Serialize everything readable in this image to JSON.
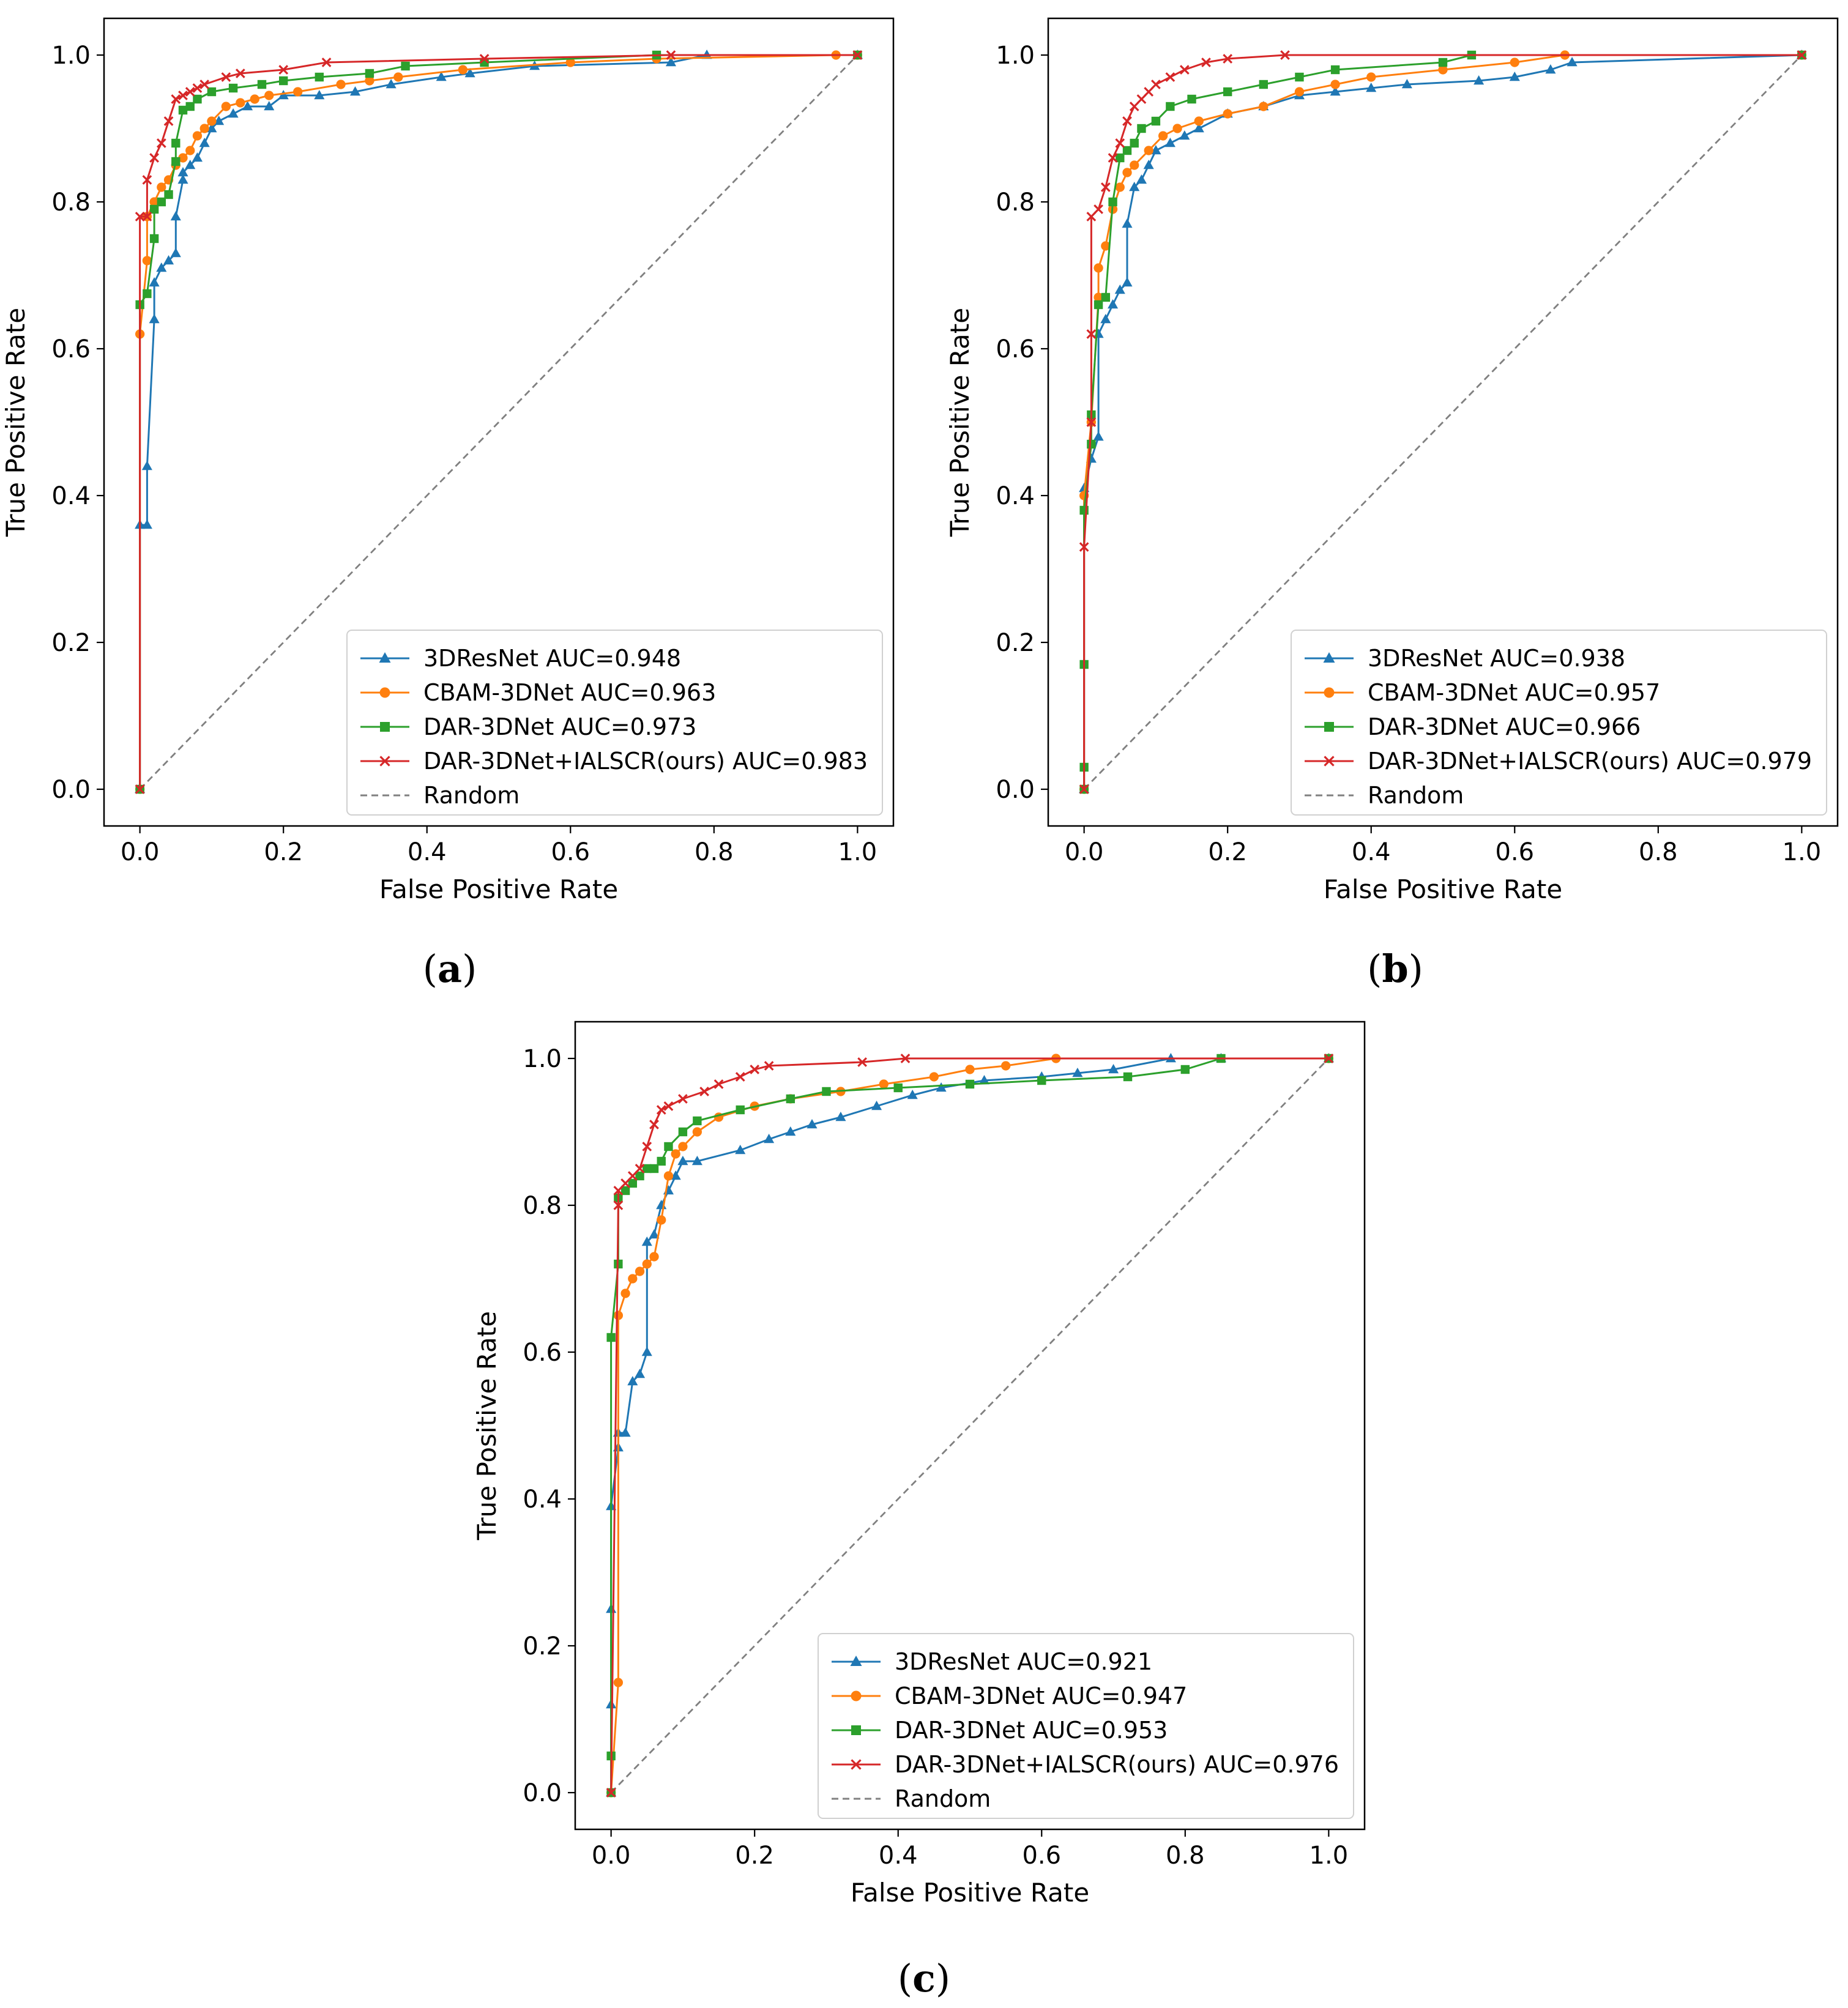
{
  "chart_data": [
    {
      "type": "line",
      "panel_label": "a",
      "xlabel": "False Positive Rate",
      "ylabel": "True Positive Rate",
      "xlim": [
        -0.05,
        1.05
      ],
      "ylim": [
        -0.05,
        1.05
      ],
      "xticks": [
        "0.0",
        "0.2",
        "0.4",
        "0.6",
        "0.8",
        "1.0"
      ],
      "yticks": [
        "0.0",
        "0.2",
        "0.4",
        "0.6",
        "0.8",
        "1.0"
      ],
      "grid": false,
      "legend_position": "lower-right",
      "series": [
        {
          "name": "3DResNet AUC=0.948",
          "color": "#1f77b4",
          "marker": "triangle",
          "x": [
            0.0,
            0.0,
            0.01,
            0.01,
            0.02,
            0.02,
            0.03,
            0.04,
            0.05,
            0.05,
            0.06,
            0.06,
            0.07,
            0.08,
            0.09,
            0.1,
            0.11,
            0.13,
            0.15,
            0.18,
            0.2,
            0.25,
            0.3,
            0.35,
            0.42,
            0.46,
            0.55,
            0.74,
            0.79,
            1.0
          ],
          "y": [
            0.0,
            0.36,
            0.36,
            0.44,
            0.64,
            0.69,
            0.71,
            0.72,
            0.73,
            0.78,
            0.83,
            0.84,
            0.85,
            0.86,
            0.88,
            0.9,
            0.91,
            0.92,
            0.93,
            0.93,
            0.945,
            0.945,
            0.95,
            0.96,
            0.97,
            0.975,
            0.985,
            0.99,
            1.0,
            1.0
          ]
        },
        {
          "name": "CBAM-3DNet AUC=0.963",
          "color": "#ff7f0e",
          "marker": "circle",
          "x": [
            0.0,
            0.0,
            0.01,
            0.01,
            0.02,
            0.03,
            0.04,
            0.05,
            0.06,
            0.07,
            0.08,
            0.09,
            0.1,
            0.12,
            0.14,
            0.16,
            0.18,
            0.22,
            0.28,
            0.32,
            0.36,
            0.45,
            0.6,
            0.72,
            0.97,
            1.0
          ],
          "y": [
            0.0,
            0.62,
            0.72,
            0.78,
            0.8,
            0.82,
            0.83,
            0.85,
            0.86,
            0.87,
            0.89,
            0.9,
            0.91,
            0.93,
            0.935,
            0.94,
            0.945,
            0.95,
            0.96,
            0.965,
            0.97,
            0.98,
            0.99,
            0.995,
            1.0,
            1.0
          ]
        },
        {
          "name": "DAR-3DNet AUC=0.973",
          "color": "#2ca02c",
          "marker": "square",
          "x": [
            0.0,
            0.0,
            0.01,
            0.02,
            0.02,
            0.03,
            0.04,
            0.05,
            0.05,
            0.06,
            0.07,
            0.08,
            0.1,
            0.13,
            0.17,
            0.2,
            0.25,
            0.32,
            0.37,
            0.48,
            0.72,
            1.0
          ],
          "y": [
            0.0,
            0.66,
            0.675,
            0.75,
            0.79,
            0.8,
            0.81,
            0.855,
            0.88,
            0.925,
            0.93,
            0.94,
            0.95,
            0.955,
            0.96,
            0.965,
            0.97,
            0.975,
            0.985,
            0.99,
            1.0,
            1.0
          ]
        },
        {
          "name": "DAR-3DNet+IALSCR(ours) AUC=0.983",
          "color": "#d62728",
          "marker": "x",
          "x": [
            0.0,
            0.0,
            0.01,
            0.01,
            0.02,
            0.03,
            0.04,
            0.05,
            0.06,
            0.07,
            0.08,
            0.09,
            0.12,
            0.14,
            0.2,
            0.26,
            0.48,
            0.74,
            1.0
          ],
          "y": [
            0.0,
            0.78,
            0.78,
            0.83,
            0.86,
            0.88,
            0.91,
            0.94,
            0.945,
            0.95,
            0.955,
            0.96,
            0.97,
            0.975,
            0.98,
            0.99,
            0.995,
            1.0,
            1.0
          ]
        },
        {
          "name": "Random",
          "color": "#808080",
          "marker": "none",
          "dashed": true,
          "x": [
            0.0,
            1.0
          ],
          "y": [
            0.0,
            1.0
          ]
        }
      ]
    },
    {
      "type": "line",
      "panel_label": "b",
      "xlabel": "False Positive Rate",
      "ylabel": "True Positive Rate",
      "xlim": [
        -0.05,
        1.05
      ],
      "ylim": [
        -0.05,
        1.05
      ],
      "xticks": [
        "0.0",
        "0.2",
        "0.4",
        "0.6",
        "0.8",
        "1.0"
      ],
      "yticks": [
        "0.0",
        "0.2",
        "0.4",
        "0.6",
        "0.8",
        "1.0"
      ],
      "grid": false,
      "legend_position": "lower-right",
      "series": [
        {
          "name": "3DResNet AUC=0.938",
          "color": "#1f77b4",
          "marker": "triangle",
          "x": [
            0.0,
            0.0,
            0.01,
            0.02,
            0.02,
            0.03,
            0.04,
            0.05,
            0.06,
            0.06,
            0.07,
            0.08,
            0.09,
            0.1,
            0.12,
            0.14,
            0.16,
            0.2,
            0.25,
            0.3,
            0.35,
            0.4,
            0.45,
            0.55,
            0.6,
            0.65,
            0.68,
            1.0
          ],
          "y": [
            0.0,
            0.41,
            0.45,
            0.48,
            0.62,
            0.64,
            0.66,
            0.68,
            0.69,
            0.77,
            0.82,
            0.83,
            0.85,
            0.87,
            0.88,
            0.89,
            0.9,
            0.92,
            0.93,
            0.945,
            0.95,
            0.955,
            0.96,
            0.965,
            0.97,
            0.98,
            0.99,
            1.0
          ]
        },
        {
          "name": "CBAM-3DNet AUC=0.957",
          "color": "#ff7f0e",
          "marker": "circle",
          "x": [
            0.0,
            0.0,
            0.01,
            0.02,
            0.02,
            0.03,
            0.04,
            0.05,
            0.06,
            0.07,
            0.09,
            0.11,
            0.13,
            0.16,
            0.2,
            0.25,
            0.3,
            0.35,
            0.4,
            0.5,
            0.6,
            0.67,
            1.0
          ],
          "y": [
            0.0,
            0.4,
            0.5,
            0.67,
            0.71,
            0.74,
            0.79,
            0.82,
            0.84,
            0.85,
            0.87,
            0.89,
            0.9,
            0.91,
            0.92,
            0.93,
            0.95,
            0.96,
            0.97,
            0.98,
            0.99,
            1.0,
            1.0
          ]
        },
        {
          "name": "DAR-3DNet AUC=0.966",
          "color": "#2ca02c",
          "marker": "square",
          "x": [
            0.0,
            0.0,
            0.0,
            0.0,
            0.01,
            0.01,
            0.02,
            0.03,
            0.04,
            0.05,
            0.06,
            0.07,
            0.08,
            0.1,
            0.12,
            0.15,
            0.2,
            0.25,
            0.3,
            0.35,
            0.5,
            0.54,
            1.0
          ],
          "y": [
            0.0,
            0.03,
            0.17,
            0.38,
            0.47,
            0.51,
            0.66,
            0.67,
            0.8,
            0.86,
            0.87,
            0.88,
            0.9,
            0.91,
            0.93,
            0.94,
            0.95,
            0.96,
            0.97,
            0.98,
            0.99,
            1.0,
            1.0
          ]
        },
        {
          "name": "DAR-3DNet+IALSCR(ours) AUC=0.979",
          "color": "#d62728",
          "marker": "x",
          "x": [
            0.0,
            0.0,
            0.01,
            0.01,
            0.01,
            0.02,
            0.03,
            0.04,
            0.05,
            0.06,
            0.07,
            0.08,
            0.09,
            0.1,
            0.12,
            0.14,
            0.17,
            0.2,
            0.28,
            1.0
          ],
          "y": [
            0.0,
            0.33,
            0.5,
            0.62,
            0.78,
            0.79,
            0.82,
            0.86,
            0.88,
            0.91,
            0.93,
            0.94,
            0.95,
            0.96,
            0.97,
            0.98,
            0.99,
            0.995,
            1.0,
            1.0
          ]
        },
        {
          "name": "Random",
          "color": "#808080",
          "marker": "none",
          "dashed": true,
          "x": [
            0.0,
            1.0
          ],
          "y": [
            0.0,
            1.0
          ]
        }
      ]
    },
    {
      "type": "line",
      "panel_label": "c",
      "xlabel": "False Positive Rate",
      "ylabel": "True Positive Rate",
      "xlim": [
        -0.05,
        1.05
      ],
      "ylim": [
        -0.05,
        1.05
      ],
      "xticks": [
        "0.0",
        "0.2",
        "0.4",
        "0.6",
        "0.8",
        "1.0"
      ],
      "yticks": [
        "0.0",
        "0.2",
        "0.4",
        "0.6",
        "0.8",
        "1.0"
      ],
      "grid": false,
      "legend_position": "lower-right",
      "series": [
        {
          "name": "3DResNet AUC=0.921",
          "color": "#1f77b4",
          "marker": "triangle",
          "x": [
            0.0,
            0.0,
            0.0,
            0.0,
            0.01,
            0.01,
            0.02,
            0.03,
            0.04,
            0.05,
            0.05,
            0.06,
            0.07,
            0.08,
            0.09,
            0.1,
            0.12,
            0.18,
            0.22,
            0.25,
            0.28,
            0.32,
            0.37,
            0.42,
            0.46,
            0.52,
            0.6,
            0.65,
            0.7,
            0.78,
            0.85,
            1.0
          ],
          "y": [
            0.0,
            0.12,
            0.25,
            0.39,
            0.47,
            0.49,
            0.49,
            0.56,
            0.57,
            0.6,
            0.75,
            0.76,
            0.8,
            0.82,
            0.84,
            0.86,
            0.86,
            0.875,
            0.89,
            0.9,
            0.91,
            0.92,
            0.935,
            0.95,
            0.96,
            0.97,
            0.975,
            0.98,
            0.985,
            1.0,
            1.0,
            1.0
          ]
        },
        {
          "name": "CBAM-3DNet AUC=0.947",
          "color": "#ff7f0e",
          "marker": "circle",
          "x": [
            0.0,
            0.01,
            0.01,
            0.02,
            0.03,
            0.04,
            0.05,
            0.06,
            0.07,
            0.08,
            0.09,
            0.1,
            0.12,
            0.15,
            0.2,
            0.25,
            0.32,
            0.38,
            0.45,
            0.5,
            0.55,
            0.62,
            1.0
          ],
          "y": [
            0.0,
            0.15,
            0.65,
            0.68,
            0.7,
            0.71,
            0.72,
            0.73,
            0.78,
            0.84,
            0.87,
            0.88,
            0.9,
            0.92,
            0.935,
            0.945,
            0.955,
            0.965,
            0.975,
            0.985,
            0.99,
            1.0,
            1.0
          ]
        },
        {
          "name": "DAR-3DNet AUC=0.953",
          "color": "#2ca02c",
          "marker": "square",
          "x": [
            0.0,
            0.0,
            0.0,
            0.01,
            0.01,
            0.02,
            0.03,
            0.04,
            0.05,
            0.06,
            0.07,
            0.08,
            0.1,
            0.12,
            0.18,
            0.25,
            0.3,
            0.4,
            0.5,
            0.6,
            0.72,
            0.8,
            0.85,
            1.0
          ],
          "y": [
            0.0,
            0.05,
            0.62,
            0.72,
            0.81,
            0.82,
            0.83,
            0.84,
            0.85,
            0.85,
            0.86,
            0.88,
            0.9,
            0.915,
            0.93,
            0.945,
            0.955,
            0.96,
            0.965,
            0.97,
            0.975,
            0.985,
            1.0,
            1.0
          ]
        },
        {
          "name": "DAR-3DNet+IALSCR(ours) AUC=0.976",
          "color": "#d62728",
          "marker": "x",
          "x": [
            0.0,
            0.01,
            0.01,
            0.02,
            0.03,
            0.04,
            0.05,
            0.06,
            0.07,
            0.08,
            0.1,
            0.13,
            0.15,
            0.18,
            0.2,
            0.22,
            0.35,
            0.41,
            1.0
          ],
          "y": [
            0.0,
            0.8,
            0.82,
            0.83,
            0.84,
            0.85,
            0.88,
            0.91,
            0.93,
            0.935,
            0.945,
            0.955,
            0.965,
            0.975,
            0.985,
            0.99,
            0.995,
            1.0,
            1.0
          ]
        },
        {
          "name": "Random",
          "color": "#808080",
          "marker": "none",
          "dashed": true,
          "x": [
            0.0,
            1.0
          ],
          "y": [
            0.0,
            1.0
          ]
        }
      ]
    }
  ]
}
